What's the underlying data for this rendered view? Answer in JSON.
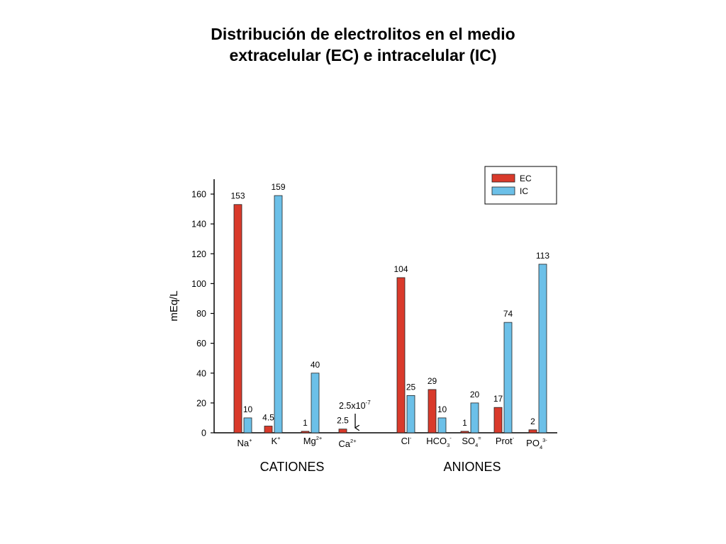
{
  "title_lines": [
    "Distribución de electrolitos en el medio",
    "extracelular (EC) e intracelular (IC)"
  ],
  "colors": {
    "EC": "#d93a2b",
    "IC": "#6cc0e8"
  },
  "chart_data": {
    "type": "bar",
    "title": "Distribución de electrolitos en el medio extracelular (EC) e intracelular (IC)",
    "ylabel": "mEq/L",
    "ylim": [
      0,
      170
    ],
    "yticks": [
      0,
      20,
      40,
      60,
      80,
      100,
      120,
      140,
      160
    ],
    "legend": {
      "position": "top-right",
      "entries": [
        "EC",
        "IC"
      ]
    },
    "grid": false,
    "groups": [
      {
        "label": "CATIONES",
        "categories": [
          "Na+",
          "K+",
          "Mg2+",
          "Ca2+"
        ]
      },
      {
        "label": "ANIONES",
        "categories": [
          "Cl-",
          "HCO3-",
          "SO4=",
          "Prot-",
          "PO43-"
        ]
      }
    ],
    "categories": [
      "Na+",
      "K+",
      "Mg2+",
      "Ca2+",
      "Cl-",
      "HCO3-",
      "SO4=",
      "Prot-",
      "PO43-"
    ],
    "series": [
      {
        "name": "EC",
        "values": [
          153,
          4.5,
          1,
          2.5,
          104,
          29,
          1,
          17,
          2
        ],
        "labels": [
          "153",
          "4.5",
          "1",
          "2.5",
          "104",
          "29",
          "1",
          "17",
          "2"
        ]
      },
      {
        "name": "IC",
        "values": [
          10,
          159,
          40,
          2.5e-07,
          25,
          10,
          20,
          74,
          113
        ],
        "labels": [
          "10",
          "159",
          "40",
          "",
          "25",
          "10",
          "20",
          "74",
          "113"
        ]
      }
    ],
    "annotations": [
      {
        "category": "Ca2+",
        "series": "IC",
        "text": "2.5x10",
        "superscript": "-7",
        "arrow": "down"
      }
    ]
  }
}
